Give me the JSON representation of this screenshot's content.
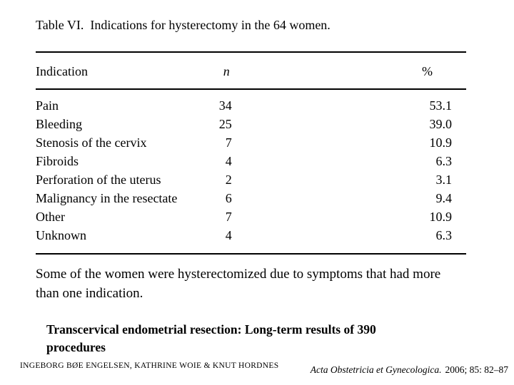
{
  "page": {
    "background_color": "#ffffff",
    "text_color": "#000000"
  },
  "table": {
    "caption": "Table VI.  Indications for hysterectomy in the 64 women.",
    "columns": {
      "indication": "Indication",
      "n": "n",
      "percent": "%"
    },
    "rows": [
      {
        "indication": "Pain",
        "n": "34",
        "percent": "53.1"
      },
      {
        "indication": "Bleeding",
        "n": "25",
        "percent": "39.0"
      },
      {
        "indication": "Stenosis of the cervix",
        "n": "7",
        "percent": "10.9"
      },
      {
        "indication": "Fibroids",
        "n": "4",
        "percent": "6.3"
      },
      {
        "indication": "Perforation of the uterus",
        "n": "2",
        "percent": "3.1"
      },
      {
        "indication": "Malignancy in the resectate",
        "n": "6",
        "percent": "9.4"
      },
      {
        "indication": "Other",
        "n": "7",
        "percent": "10.9"
      },
      {
        "indication": "Unknown",
        "n": "4",
        "percent": "6.3"
      }
    ],
    "footnote": "Some of the women were hysterectomized due to symptoms that had more than one indication."
  },
  "source": {
    "article_title": "Transcervical endometrial resection: Long-term results of 390 procedures",
    "authors": "INGEBORG BØE ENGELSEN, KATHRINE WOIE & KNUT HORDNES",
    "journal": "Acta Obstetricia et Gynecologica.",
    "citation_detail": "2006; 85: 82–87"
  }
}
